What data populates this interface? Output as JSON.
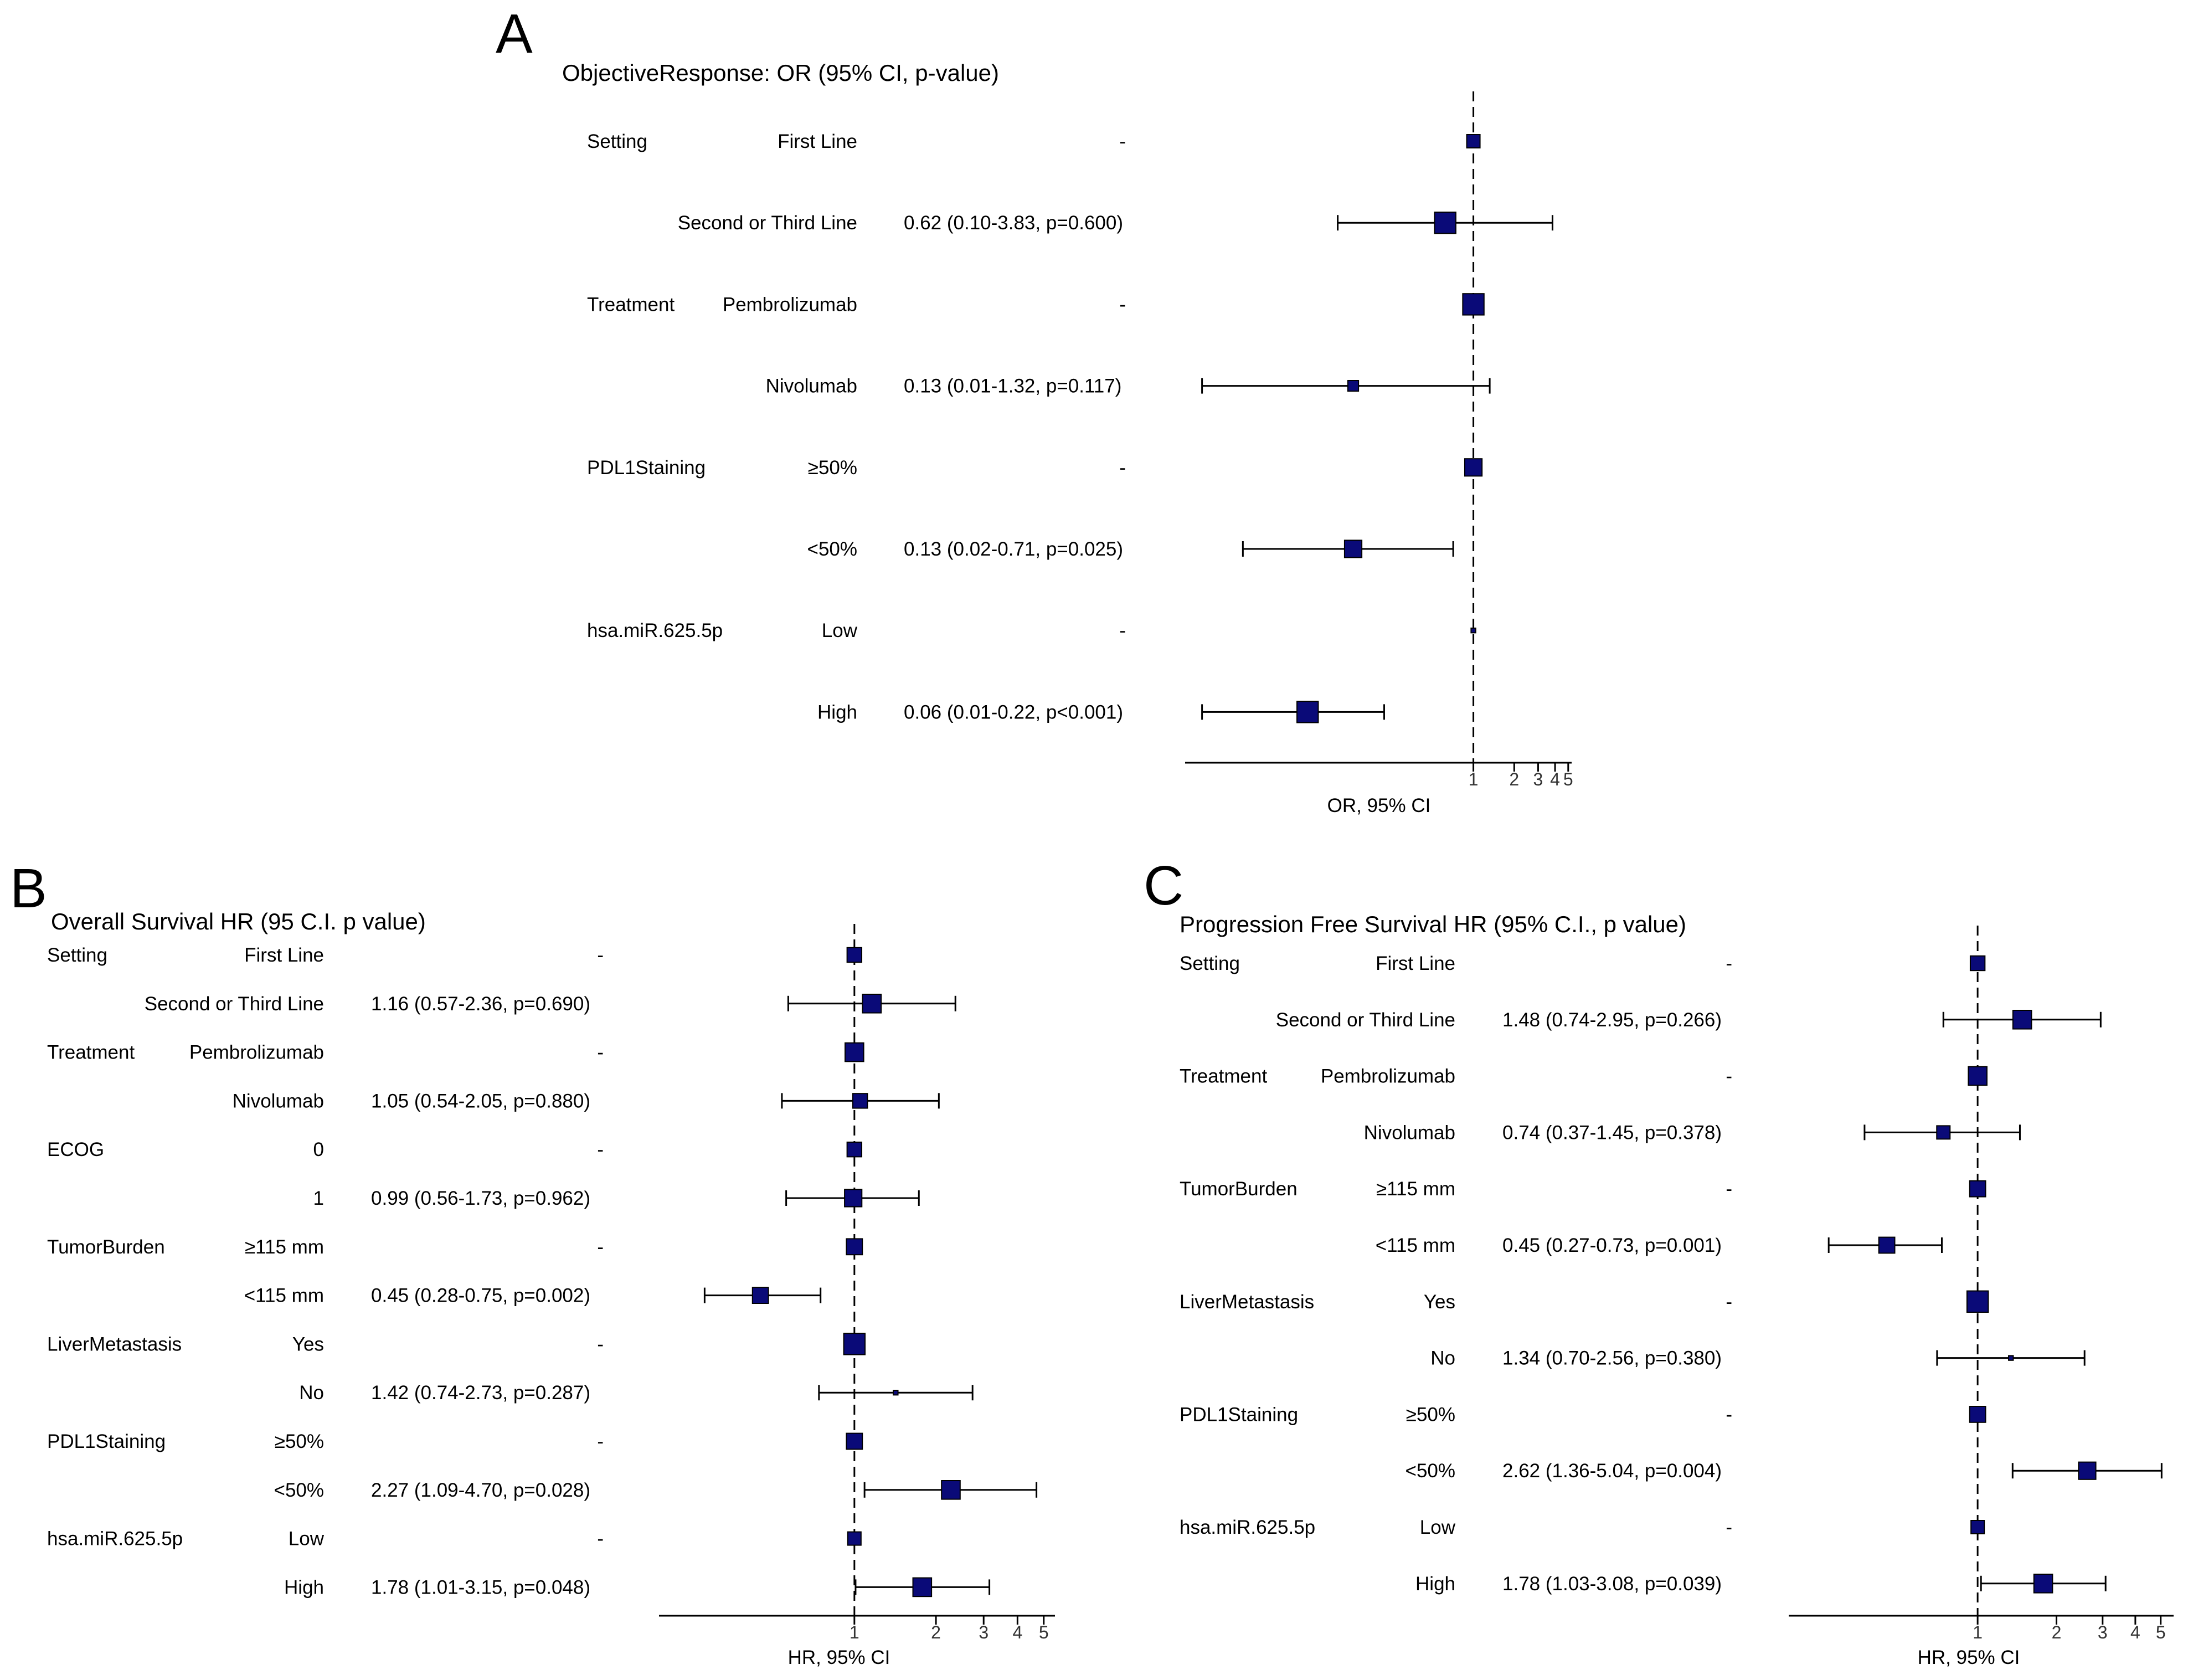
{
  "colors": {
    "marker": "#0a0a78",
    "line": "#000000",
    "background": "#ffffff"
  },
  "chart_data": [
    {
      "panel": "A",
      "type": "forest",
      "title": "ObjectiveResponse: OR (95% CI, p-value)",
      "xlabel": "OR, 95% CI",
      "scale": "log",
      "reference_value": 1,
      "xlim": [
        0.0075,
        5.3
      ],
      "ticks": [
        {
          "v": 1,
          "label": "1"
        },
        {
          "v": 2,
          "label": "2"
        },
        {
          "v": 3,
          "label": "3"
        },
        {
          "v": 4,
          "label": "4"
        },
        {
          "v": 5,
          "label": "5"
        }
      ],
      "rows": [
        {
          "variable": "Setting",
          "level": "First Line",
          "text": "-",
          "est": 1,
          "lo": null,
          "hi": null,
          "size": 1.0
        },
        {
          "variable": "",
          "level": "Second or Third Line",
          "text": "0.62 (0.10-3.83, p=0.600)",
          "est": 0.62,
          "lo": 0.1,
          "hi": 3.83,
          "size": 1.6
        },
        {
          "variable": "Treatment",
          "level": "Pembrolizumab",
          "text": "-",
          "est": 1,
          "lo": null,
          "hi": null,
          "size": 1.6
        },
        {
          "variable": "",
          "level": "Nivolumab",
          "text": "0.13 (0.01-1.32, p=0.117)",
          "est": 0.13,
          "lo": 0.01,
          "hi": 1.32,
          "size": 0.8
        },
        {
          "variable": "PDL1Staining",
          "level": "≥50%",
          "text": "-",
          "est": 1,
          "lo": null,
          "hi": null,
          "size": 1.3
        },
        {
          "variable": "",
          "level": "<50%",
          "text": "0.13 (0.02-0.71, p=0.025)",
          "est": 0.13,
          "lo": 0.02,
          "hi": 0.71,
          "size": 1.3
        },
        {
          "variable": "hsa.miR.625.5p",
          "level": "Low",
          "text": "-",
          "est": 1,
          "lo": null,
          "hi": null,
          "size": 0.35
        },
        {
          "variable": "",
          "level": "High",
          "text": "0.06 (0.01-0.22, p<0.001)",
          "est": 0.06,
          "lo": 0.01,
          "hi": 0.22,
          "size": 1.6
        }
      ]
    },
    {
      "panel": "B",
      "type": "forest",
      "title": "Overall Survival HR (95 C.I. p value)",
      "xlabel": "HR, 95% CI",
      "scale": "log",
      "reference_value": 1,
      "xlim": [
        0.19,
        5.5
      ],
      "ticks": [
        {
          "v": 1,
          "label": "1"
        },
        {
          "v": 2,
          "label": "2"
        },
        {
          "v": 3,
          "label": "3"
        },
        {
          "v": 4,
          "label": "4"
        },
        {
          "v": 5,
          "label": "5"
        }
      ],
      "rows": [
        {
          "variable": "Setting",
          "level": "First Line",
          "text": "-",
          "est": 1,
          "lo": null,
          "hi": null,
          "size": 1.1
        },
        {
          "variable": "",
          "level": "Second or Third Line",
          "text": "1.16 (0.57-2.36, p=0.690)",
          "est": 1.16,
          "lo": 0.57,
          "hi": 2.36,
          "size": 1.4
        },
        {
          "variable": "Treatment",
          "level": "Pembrolizumab",
          "text": "-",
          "est": 1,
          "lo": null,
          "hi": null,
          "size": 1.4
        },
        {
          "variable": "",
          "level": "Nivolumab",
          "text": "1.05 (0.54-2.05, p=0.880)",
          "est": 1.05,
          "lo": 0.54,
          "hi": 2.05,
          "size": 1.1
        },
        {
          "variable": "ECOG",
          "level": "0",
          "text": "-",
          "est": 1,
          "lo": null,
          "hi": null,
          "size": 1.1
        },
        {
          "variable": "",
          "level": "1",
          "text": "0.99 (0.56-1.73, p=0.962)",
          "est": 0.99,
          "lo": 0.56,
          "hi": 1.73,
          "size": 1.3
        },
        {
          "variable": "TumorBurden",
          "level": "≥115 mm",
          "text": "-",
          "est": 1,
          "lo": null,
          "hi": null,
          "size": 1.2
        },
        {
          "variable": "",
          "level": "<115 mm",
          "text": "0.45 (0.28-0.75, p=0.002)",
          "est": 0.45,
          "lo": 0.28,
          "hi": 0.75,
          "size": 1.2
        },
        {
          "variable": "LiverMetastasis",
          "level": "Yes",
          "text": "-",
          "est": 1,
          "lo": null,
          "hi": null,
          "size": 1.6
        },
        {
          "variable": "",
          "level": "No",
          "text": "1.42 (0.74-2.73, p=0.287)",
          "est": 1.42,
          "lo": 0.74,
          "hi": 2.73,
          "size": 0.35
        },
        {
          "variable": "PDL1Staining",
          "level": "≥50%",
          "text": "-",
          "est": 1,
          "lo": null,
          "hi": null,
          "size": 1.2
        },
        {
          "variable": "",
          "level": "<50%",
          "text": "2.27 (1.09-4.70, p=0.028)",
          "est": 2.27,
          "lo": 1.09,
          "hi": 4.7,
          "size": 1.4
        },
        {
          "variable": "hsa.miR.625.5p",
          "level": "Low",
          "text": "-",
          "est": 1,
          "lo": null,
          "hi": null,
          "size": 1.0
        },
        {
          "variable": "",
          "level": "High",
          "text": "1.78 (1.01-3.15, p=0.048)",
          "est": 1.78,
          "lo": 1.01,
          "hi": 3.15,
          "size": 1.4
        }
      ]
    },
    {
      "panel": "C",
      "type": "forest",
      "title": "Progression Free Survival HR (95% C.I., p value)",
      "xlabel": "HR, 95% CI",
      "scale": "log",
      "reference_value": 1,
      "xlim": [
        0.19,
        5.6
      ],
      "ticks": [
        {
          "v": 1,
          "label": "1"
        },
        {
          "v": 2,
          "label": "2"
        },
        {
          "v": 3,
          "label": "3"
        },
        {
          "v": 4,
          "label": "4"
        },
        {
          "v": 5,
          "label": "5"
        }
      ],
      "rows": [
        {
          "variable": "Setting",
          "level": "First Line",
          "text": "-",
          "est": 1,
          "lo": null,
          "hi": null,
          "size": 1.1
        },
        {
          "variable": "",
          "level": "Second or Third Line",
          "text": "1.48 (0.74-2.95, p=0.266)",
          "est": 1.48,
          "lo": 0.74,
          "hi": 2.95,
          "size": 1.4
        },
        {
          "variable": "Treatment",
          "level": "Pembrolizumab",
          "text": "-",
          "est": 1,
          "lo": null,
          "hi": null,
          "size": 1.4
        },
        {
          "variable": "",
          "level": "Nivolumab",
          "text": "0.74 (0.37-1.45, p=0.378)",
          "est": 0.74,
          "lo": 0.37,
          "hi": 1.45,
          "size": 1.0
        },
        {
          "variable": "TumorBurden",
          "level": "≥115 mm",
          "text": "-",
          "est": 1,
          "lo": null,
          "hi": null,
          "size": 1.2
        },
        {
          "variable": "",
          "level": "<115 mm",
          "text": "0.45 (0.27-0.73, p=0.001)",
          "est": 0.45,
          "lo": 0.27,
          "hi": 0.73,
          "size": 1.2
        },
        {
          "variable": "LiverMetastasis",
          "level": "Yes",
          "text": "-",
          "est": 1,
          "lo": null,
          "hi": null,
          "size": 1.6
        },
        {
          "variable": "",
          "level": "No",
          "text": "1.34 (0.70-2.56, p=0.380)",
          "est": 1.34,
          "lo": 0.7,
          "hi": 2.56,
          "size": 0.35
        },
        {
          "variable": "PDL1Staining",
          "level": "≥50%",
          "text": "-",
          "est": 1,
          "lo": null,
          "hi": null,
          "size": 1.2
        },
        {
          "variable": "",
          "level": "<50%",
          "text": "2.62 (1.36-5.04, p=0.004)",
          "est": 2.62,
          "lo": 1.36,
          "hi": 5.04,
          "size": 1.3
        },
        {
          "variable": "hsa.miR.625.5p",
          "level": "Low",
          "text": "-",
          "est": 1,
          "lo": null,
          "hi": null,
          "size": 1.0
        },
        {
          "variable": "",
          "level": "High",
          "text": "1.78 (1.03-3.08, p=0.039)",
          "est": 1.78,
          "lo": 1.03,
          "hi": 3.08,
          "size": 1.4
        }
      ]
    }
  ]
}
